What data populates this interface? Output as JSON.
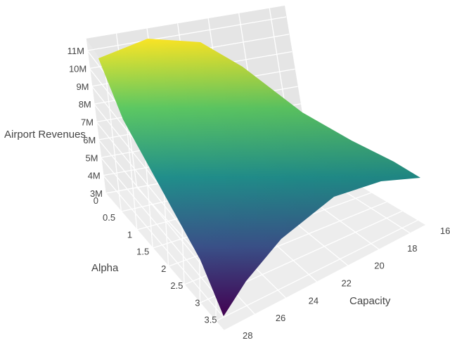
{
  "chart_data": {
    "type": "surface3d",
    "title": "",
    "colorscale": "Viridis",
    "colorscale_stops": [
      "#440154",
      "#3b528b",
      "#21908d",
      "#5dc963",
      "#fde725"
    ],
    "z_axis": {
      "label": "Airport Revenues",
      "range": [
        3000000,
        11000000
      ],
      "tick_values": [
        3000000,
        4000000,
        5000000,
        6000000,
        7000000,
        8000000,
        9000000,
        10000000,
        11000000
      ],
      "tick_labels": [
        "3M",
        "4M",
        "5M",
        "6M",
        "7M",
        "8M",
        "9M",
        "10M",
        "11M"
      ]
    },
    "alpha_axis": {
      "label": "Alpha",
      "range": [
        0,
        3.75
      ],
      "tick_values": [
        0,
        0.5,
        1,
        1.5,
        2,
        2.5,
        3,
        3.5
      ],
      "tick_labels": [
        "0",
        "0.5",
        "1",
        "1.5",
        "2",
        "2.5",
        "3",
        "3.5"
      ]
    },
    "capacity_axis": {
      "label": "Capacity",
      "range": [
        15,
        28
      ],
      "tick_values": [
        16,
        18,
        20,
        22,
        24,
        26,
        28
      ],
      "tick_labels": [
        "16",
        "18",
        "20",
        "22",
        "24",
        "26",
        "28"
      ]
    },
    "grid": true,
    "backdrop_color": "#e5e5e5",
    "gridline_color": "#ffffff",
    "surface_outline": {
      "alpha_zero_edge": {
        "capacity": [
          15,
          16,
          17,
          18,
          19,
          20,
          21,
          22,
          23,
          24,
          25,
          26,
          27,
          28
        ],
        "revenue": [
          7600000,
          8000000,
          8400000,
          8800000,
          9200000,
          9600000,
          10000000,
          10400000,
          10800000,
          11000000,
          10950000,
          10800000,
          10600000,
          10300000
        ]
      },
      "alpha_max_edge": {
        "capacity": [
          15,
          17,
          19,
          21,
          23,
          25,
          27,
          28
        ],
        "revenue": [
          5500000,
          5300000,
          5000000,
          4700000,
          4300000,
          3700000,
          3000000,
          2500000
        ]
      }
    }
  }
}
